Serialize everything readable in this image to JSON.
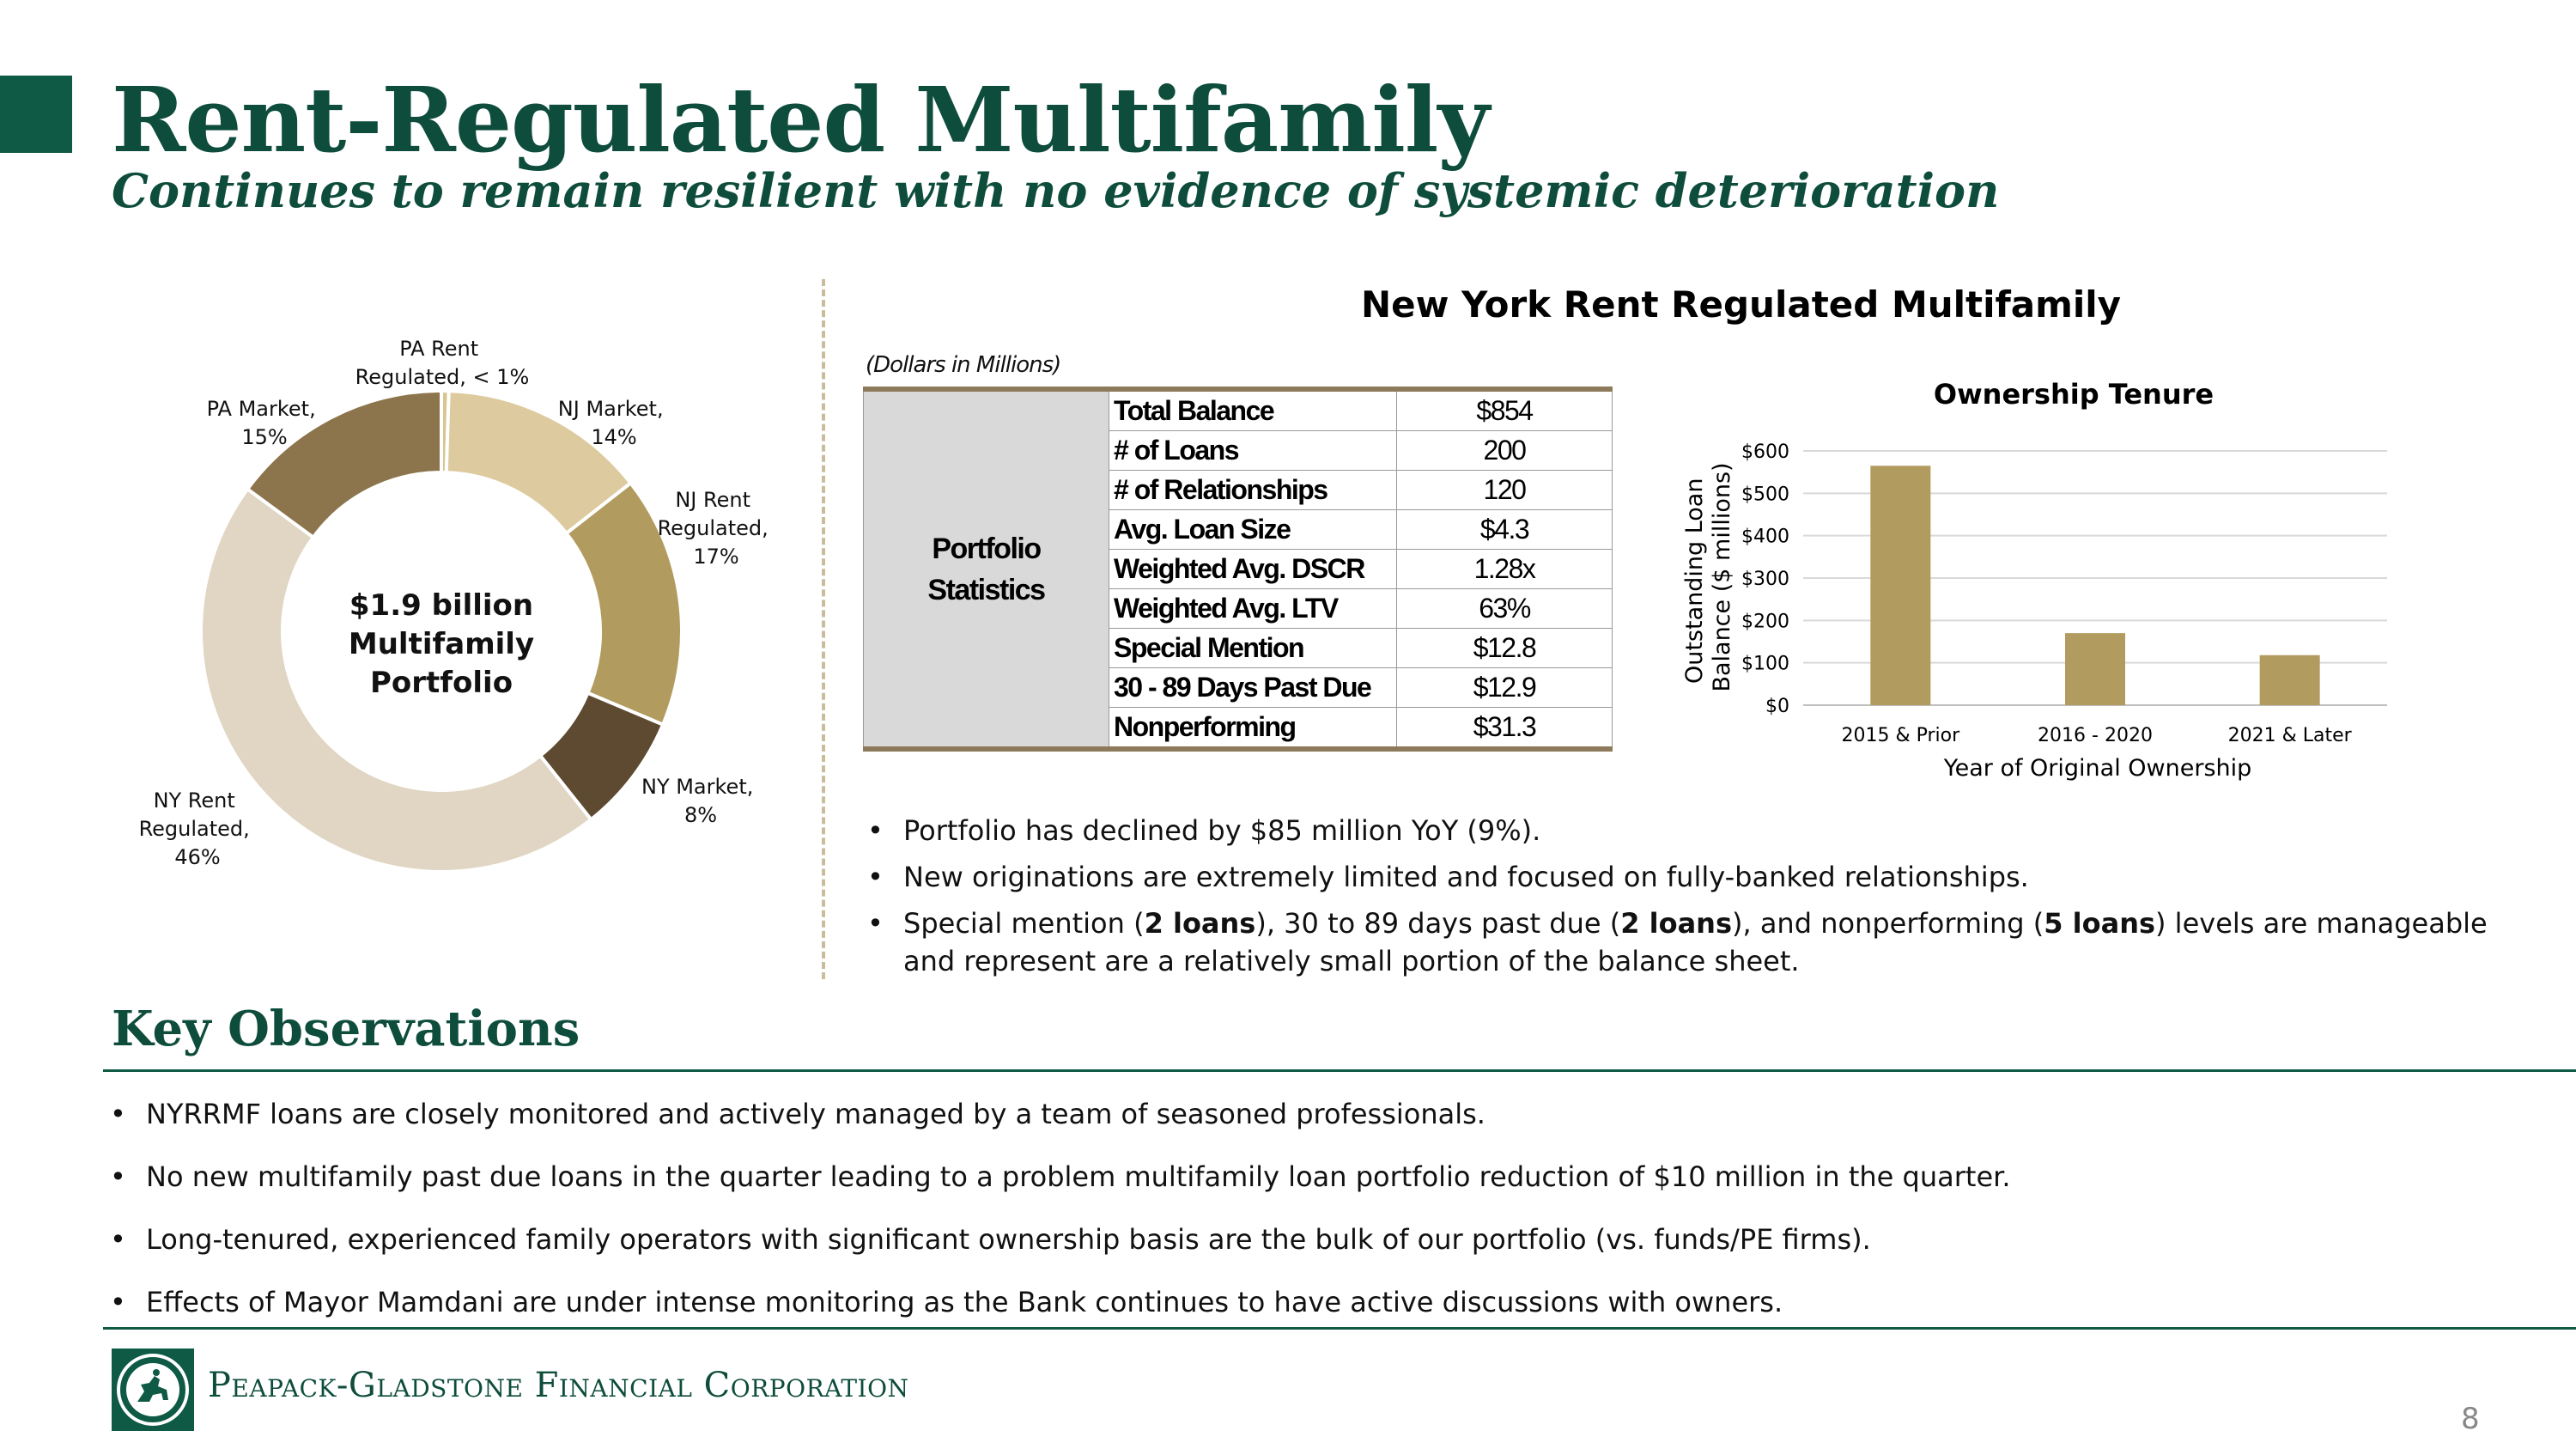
{
  "header": {
    "title": "Rent-Regulated Multifamily",
    "subtitle": "Continues to remain resilient with no evidence of systemic deterioration"
  },
  "donut": {
    "center_lines": [
      "$1.9 billion",
      "Multifamily",
      "Portfolio"
    ],
    "label_lines": [
      [
        "PA Rent",
        "Regulated, < 1%"
      ],
      [
        "NJ Market,",
        "14%"
      ],
      [
        "NJ Rent",
        "Regulated,",
        "17%"
      ],
      [
        "NY Market,",
        "8%"
      ],
      [
        "NY Rent",
        "Regulated,",
        "46%"
      ],
      [
        "PA Market,",
        "15%"
      ]
    ]
  },
  "chart_data": [
    {
      "type": "pie",
      "categories": [
        "PA Rent Regulated",
        "NJ Market",
        "NJ Rent Regulated",
        "NY Market",
        "NY Rent Regulated",
        "PA Market"
      ],
      "values": [
        0.5,
        14,
        17,
        8,
        46,
        15
      ],
      "colors": [
        "#d8c592",
        "#ddcb9f",
        "#b29b5e",
        "#5e4a30",
        "#e0d6c3",
        "#8c744c"
      ],
      "title": ""
    },
    {
      "type": "bar",
      "title": "Ownership Tenure",
      "categories": [
        "2015 & Prior",
        "2016 - 2020",
        "2021 & Later"
      ],
      "values": [
        565,
        170,
        118
      ],
      "xlabel": "Year of Original Ownership",
      "ylabel": "Outstanding Loan Balance ($ millions)",
      "ylabel_lines": [
        "Outstanding Loan",
        "Balance ($ millions)"
      ],
      "ylim": [
        0,
        600
      ],
      "yticks": [
        "$0",
        "$100",
        "$200",
        "$300",
        "$400",
        "$500",
        "$600"
      ],
      "bar_color": "#b29b5e",
      "grid": true
    }
  ],
  "ny_section": {
    "title": "New York Rent Regulated Multifamily",
    "units_note": "(Dollars in Millions)",
    "group_label_lines": [
      "Portfolio",
      "Statistics"
    ],
    "rows": [
      {
        "label": "Total Balance",
        "value": "$854"
      },
      {
        "label": "# of Loans",
        "value": "200"
      },
      {
        "label": "# of Relationships",
        "value": "120"
      },
      {
        "label": "Avg. Loan Size",
        "value": "$4.3"
      },
      {
        "label": "Weighted Avg. DSCR",
        "value": "1.28x"
      },
      {
        "label": "Weighted Avg. LTV",
        "value": "63%"
      },
      {
        "label": "Special Mention",
        "value": "$12.8"
      },
      {
        "label": "30 - 89 Days Past Due",
        "value": "$12.9"
      },
      {
        "label": "Nonperforming",
        "value": "$31.3"
      }
    ],
    "bullets": {
      "b1": "Portfolio has declined by $85 million YoY (9%).",
      "b2": "New originations are extremely limited and focused on fully-banked relationships.",
      "b3": {
        "t1": "Special mention (",
        "bold1": "2 loans",
        "t2": "), 30 to 89 days past due (",
        "bold2": "2 loans",
        "t3": "), and nonperforming (",
        "bold3": "5 loans",
        "t4": ") levels are manageable and represent are a relatively small portion of the balance sheet."
      }
    }
  },
  "key_observations": {
    "title": "Key Observations",
    "items": [
      "NYRRMF loans are closely monitored and actively managed by a team of seasoned professionals.",
      "No new multifamily past due loans in the quarter leading to a problem multifamily loan portfolio reduction of $10 million in the quarter.",
      "Long-tenured, experienced family operators with significant ownership basis are the bulk of our portfolio (vs. funds/PE firms).",
      "Effects of Mayor Mamdani are under intense monitoring as the Bank continues to have active discussions with owners."
    ]
  },
  "footer": {
    "company": "Peapack-Gladstone Financial Corporation",
    "page_number": "8",
    "logo_icon": "horse-rider-seal-icon"
  },
  "colors": {
    "brand_green": "#0e4d3c",
    "accent_tan": "#b29b5e"
  }
}
